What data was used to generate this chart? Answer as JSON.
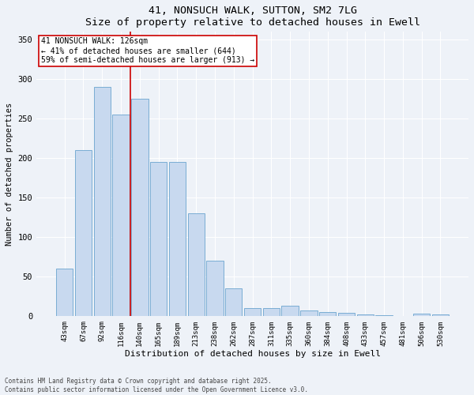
{
  "title1": "41, NONSUCH WALK, SUTTON, SM2 7LG",
  "title2": "Size of property relative to detached houses in Ewell",
  "xlabel": "Distribution of detached houses by size in Ewell",
  "ylabel": "Number of detached properties",
  "categories": [
    "43sqm",
    "67sqm",
    "92sqm",
    "116sqm",
    "140sqm",
    "165sqm",
    "189sqm",
    "213sqm",
    "238sqm",
    "262sqm",
    "287sqm",
    "311sqm",
    "335sqm",
    "360sqm",
    "384sqm",
    "408sqm",
    "433sqm",
    "457sqm",
    "481sqm",
    "506sqm",
    "530sqm"
  ],
  "values": [
    60,
    210,
    290,
    255,
    275,
    195,
    195,
    130,
    70,
    35,
    10,
    10,
    13,
    7,
    5,
    4,
    2,
    1,
    0,
    3,
    2
  ],
  "bar_color": "#c8d9ef",
  "bar_edge_color": "#7aadd4",
  "vline_x_index": 3.5,
  "vline_color": "#cc0000",
  "annotation_text": "41 NONSUCH WALK: 126sqm\n← 41% of detached houses are smaller (644)\n59% of semi-detached houses are larger (913) →",
  "annotation_box_color": "#ffffff",
  "annotation_box_edge": "#cc0000",
  "ylim": [
    0,
    360
  ],
  "yticks": [
    0,
    50,
    100,
    150,
    200,
    250,
    300,
    350
  ],
  "footer1": "Contains HM Land Registry data © Crown copyright and database right 2025.",
  "footer2": "Contains public sector information licensed under the Open Government Licence v3.0.",
  "bg_color": "#eef2f8"
}
